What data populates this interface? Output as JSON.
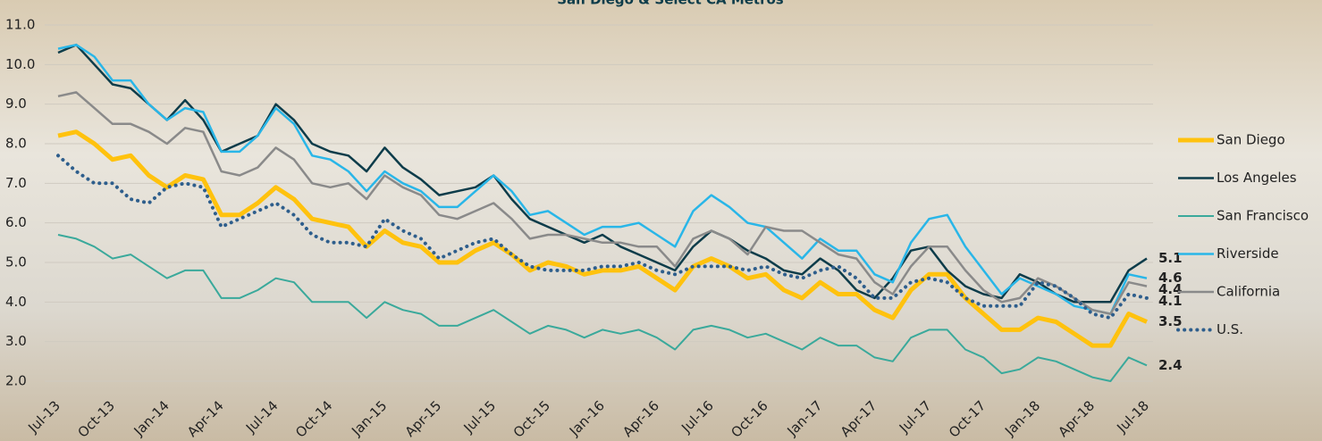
{
  "chart_data": {
    "type": "line",
    "title": "San Diego & Select CA Metros",
    "categories": [
      "Jul-13",
      null,
      null,
      "Oct-13",
      null,
      null,
      "Jan-14",
      null,
      null,
      "Apr-14",
      null,
      null,
      "Jul-14",
      null,
      null,
      "Oct-14",
      null,
      null,
      "Jan-15",
      null,
      null,
      "Apr-15",
      null,
      null,
      "Jul-15",
      null,
      null,
      "Oct-15",
      null,
      null,
      "Jan-16",
      null,
      null,
      "Apr-16",
      null,
      null,
      "Jul-16",
      null,
      null,
      "Oct-16",
      null,
      null,
      "Jan-17",
      null,
      null,
      "Apr-17",
      null,
      null,
      "Jul-17",
      null,
      null,
      "Oct-17",
      null,
      null,
      "Jan-18",
      null,
      null,
      "Apr-18",
      null,
      null,
      "Jul-18"
    ],
    "ylim": [
      2,
      11
    ],
    "yticks": [
      {
        "value": 2,
        "label": "2.0"
      },
      {
        "value": 3,
        "label": "3.0"
      },
      {
        "value": 4,
        "label": "4.0"
      },
      {
        "value": 5,
        "label": "5.0"
      },
      {
        "value": 6,
        "label": "6.0"
      },
      {
        "value": 7,
        "label": "7.0"
      },
      {
        "value": 8,
        "label": "8.0"
      },
      {
        "value": 9,
        "label": "9.0"
      },
      {
        "value": 10,
        "label": "10.0"
      },
      {
        "value": 11,
        "label": "11.0"
      }
    ],
    "grid": true,
    "legend": "right",
    "series": [
      {
        "name": "San Diego",
        "color": "#ffc20e",
        "width": 5,
        "dash": "solid",
        "values": [
          8.2,
          8.3,
          8.0,
          7.6,
          7.7,
          7.2,
          6.9,
          7.2,
          7.1,
          6.2,
          6.2,
          6.5,
          6.9,
          6.6,
          6.1,
          6.0,
          5.9,
          5.4,
          5.8,
          5.5,
          5.4,
          5.0,
          5.0,
          5.3,
          5.5,
          5.2,
          4.8,
          5.0,
          4.9,
          4.7,
          4.8,
          4.8,
          4.9,
          4.6,
          4.3,
          4.9,
          5.1,
          4.9,
          4.6,
          4.7,
          4.3,
          4.1,
          4.5,
          4.2,
          4.2,
          3.8,
          3.6,
          4.3,
          4.7,
          4.7,
          4.1,
          3.7,
          3.3,
          3.3,
          3.6,
          3.5,
          3.2,
          2.9,
          2.9,
          3.7,
          3.5
        ]
      },
      {
        "name": "Los Angeles",
        "color": "#0d3c4a",
        "width": 2.5,
        "dash": "solid",
        "values": [
          10.3,
          10.5,
          10.0,
          9.5,
          9.4,
          9.0,
          8.6,
          9.1,
          8.6,
          7.8,
          8.0,
          8.2,
          9.0,
          8.6,
          8.0,
          7.8,
          7.7,
          7.3,
          7.9,
          7.4,
          7.1,
          6.7,
          6.8,
          6.9,
          7.2,
          6.6,
          6.1,
          5.9,
          5.7,
          5.5,
          5.7,
          5.4,
          5.2,
          5.0,
          4.8,
          5.4,
          5.8,
          5.6,
          5.3,
          5.1,
          4.8,
          4.7,
          5.1,
          4.8,
          4.3,
          4.1,
          4.6,
          5.3,
          5.4,
          4.8,
          4.4,
          4.2,
          4.1,
          4.7,
          4.5,
          4.2,
          4.0,
          4.0,
          4.0,
          4.8,
          5.1
        ]
      },
      {
        "name": "San Francisco",
        "color": "#3aa99b",
        "width": 2,
        "dash": "solid",
        "values": [
          5.7,
          5.6,
          5.4,
          5.1,
          5.2,
          4.9,
          4.6,
          4.8,
          4.8,
          4.1,
          4.1,
          4.3,
          4.6,
          4.5,
          4.0,
          4.0,
          4.0,
          3.6,
          4.0,
          3.8,
          3.7,
          3.4,
          3.4,
          3.6,
          3.8,
          3.5,
          3.2,
          3.4,
          3.3,
          3.1,
          3.3,
          3.2,
          3.3,
          3.1,
          2.8,
          3.3,
          3.4,
          3.3,
          3.1,
          3.2,
          3.0,
          2.8,
          3.1,
          2.9,
          2.9,
          2.6,
          2.5,
          3.1,
          3.3,
          3.3,
          2.8,
          2.6,
          2.2,
          2.3,
          2.6,
          2.5,
          2.3,
          2.1,
          2.0,
          2.6,
          2.4
        ]
      },
      {
        "name": "Riverside",
        "color": "#29b6e8",
        "width": 2.5,
        "dash": "solid",
        "values": [
          10.4,
          10.5,
          10.2,
          9.6,
          9.6,
          9.0,
          8.6,
          8.9,
          8.8,
          7.8,
          7.8,
          8.2,
          8.9,
          8.5,
          7.7,
          7.6,
          7.3,
          6.8,
          7.3,
          7.0,
          6.8,
          6.4,
          6.4,
          6.8,
          7.2,
          6.8,
          6.2,
          6.3,
          6.0,
          5.7,
          5.9,
          5.9,
          6.0,
          5.7,
          5.4,
          6.3,
          6.7,
          6.4,
          6.0,
          5.9,
          5.5,
          5.1,
          5.6,
          5.3,
          5.3,
          4.7,
          4.5,
          5.5,
          6.1,
          6.2,
          5.4,
          4.8,
          4.2,
          4.6,
          4.4,
          4.2,
          3.9,
          3.8,
          3.7,
          4.7,
          4.6
        ]
      },
      {
        "name": "California",
        "color": "#8a8a8a",
        "width": 2.5,
        "dash": "solid",
        "values": [
          9.2,
          9.3,
          8.9,
          8.5,
          8.5,
          8.3,
          8.0,
          8.4,
          8.3,
          7.3,
          7.2,
          7.4,
          7.9,
          7.6,
          7.0,
          6.9,
          7.0,
          6.6,
          7.2,
          6.9,
          6.7,
          6.2,
          6.1,
          6.3,
          6.5,
          6.1,
          5.6,
          5.7,
          5.7,
          5.6,
          5.5,
          5.5,
          5.4,
          5.4,
          4.9,
          5.6,
          5.8,
          5.6,
          5.2,
          5.9,
          5.8,
          5.8,
          5.5,
          5.2,
          5.1,
          4.5,
          4.2,
          4.9,
          5.4,
          5.4,
          4.8,
          4.3,
          4.0,
          4.1,
          4.6,
          4.4,
          4.1,
          3.8,
          3.7,
          4.5,
          4.4
        ]
      },
      {
        "name": "U.S.",
        "color": "#2e5e8c",
        "width": 4,
        "dash": "dotted",
        "values": [
          7.7,
          7.3,
          7.0,
          7.0,
          6.6,
          6.5,
          6.9,
          7.0,
          6.9,
          5.9,
          6.1,
          6.3,
          6.5,
          6.2,
          5.7,
          5.5,
          5.5,
          5.4,
          6.1,
          5.8,
          5.6,
          5.1,
          5.3,
          5.5,
          5.6,
          5.2,
          4.9,
          4.8,
          4.8,
          4.8,
          4.9,
          4.9,
          5.0,
          4.8,
          4.7,
          4.9,
          4.9,
          4.9,
          4.8,
          4.9,
          4.7,
          4.6,
          4.8,
          4.9,
          4.6,
          4.1,
          4.1,
          4.5,
          4.6,
          4.5,
          4.1,
          3.9,
          3.9,
          3.9,
          4.5,
          4.4,
          4.1,
          3.7,
          3.6,
          4.2,
          4.1
        ]
      }
    ]
  }
}
